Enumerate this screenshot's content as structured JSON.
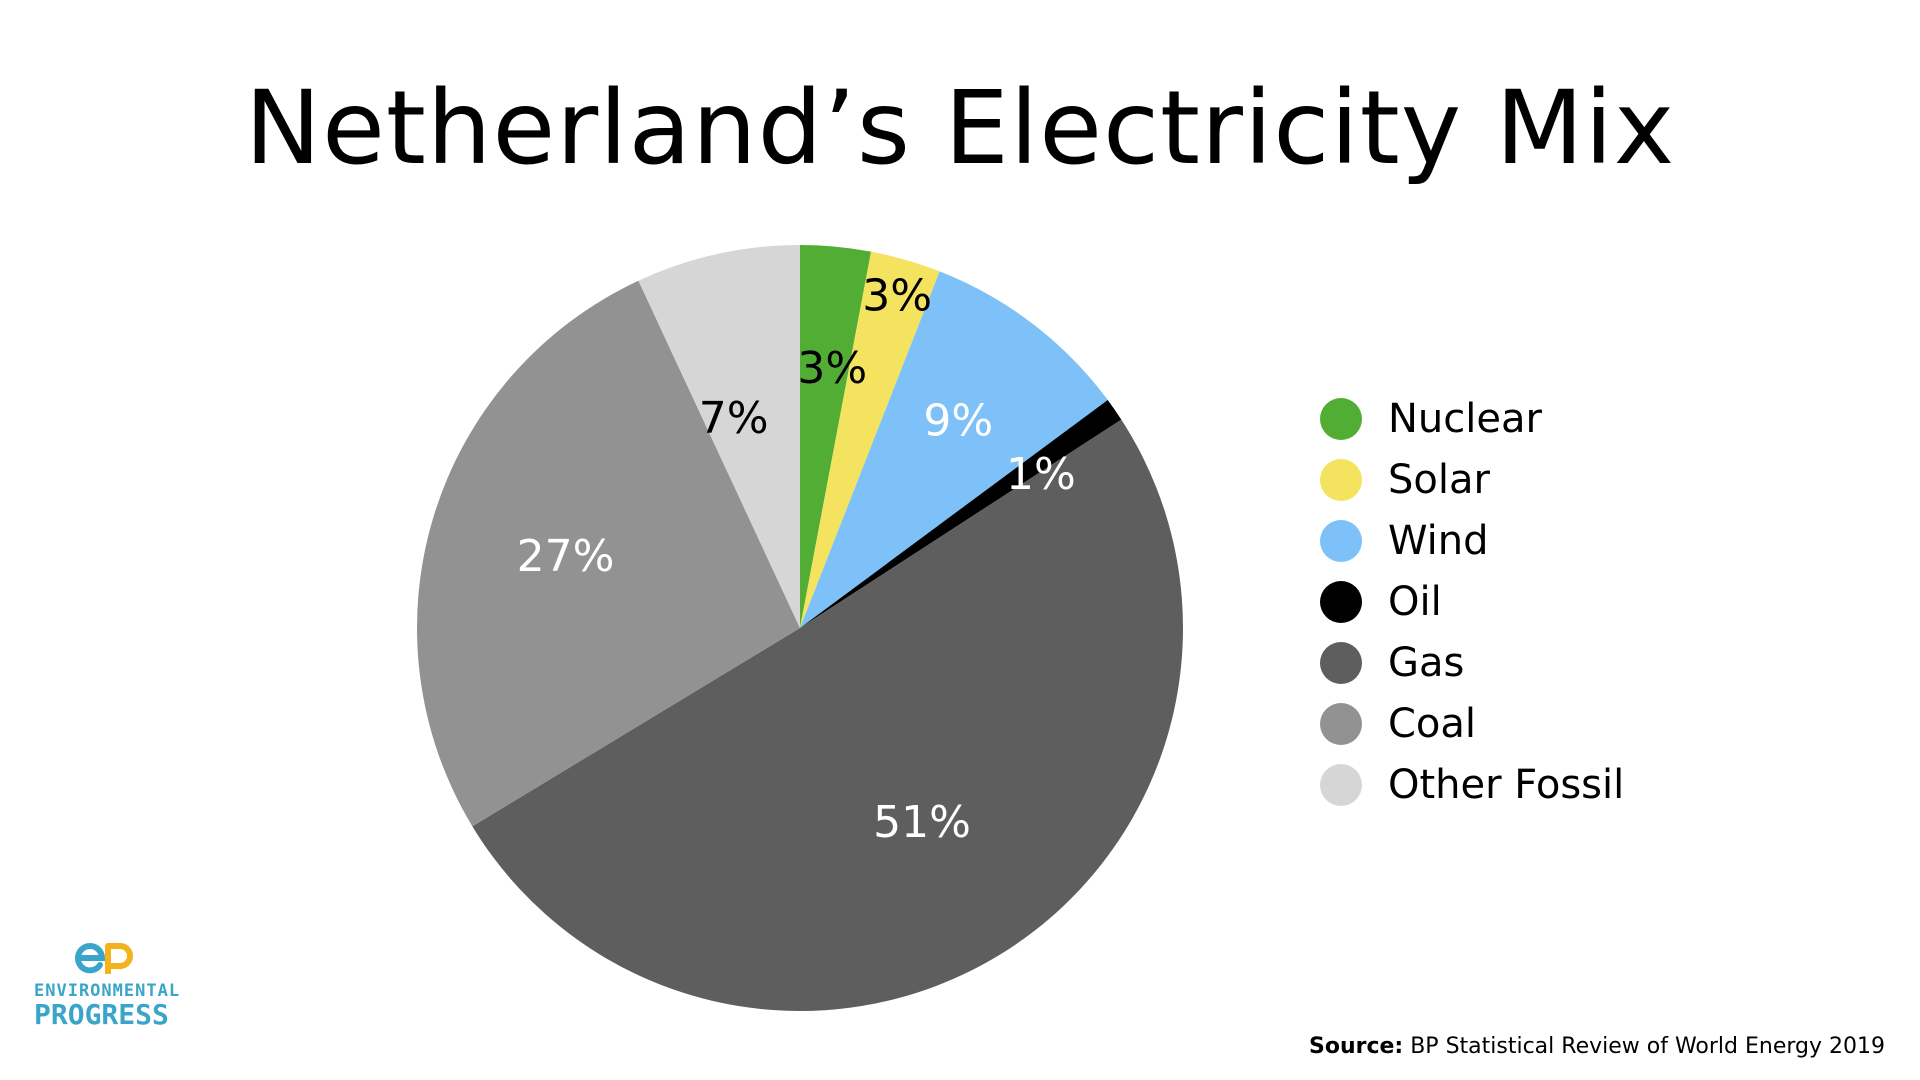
{
  "slide": {
    "title": "Netherland’s Electricity Mix"
  },
  "chart_data": {
    "type": "pie",
    "title": "Netherland’s Electricity Mix",
    "slices": [
      {
        "name": "Nuclear",
        "value": 3,
        "label": "3%",
        "color": "#52ad35",
        "label_color": "#000000"
      },
      {
        "name": "Solar",
        "value": 3,
        "label": "3%",
        "color": "#f4e35e",
        "label_color": "#000000"
      },
      {
        "name": "Wind",
        "value": 9,
        "label": "9%",
        "color": "#7ec0f8",
        "label_color": "#ffffff"
      },
      {
        "name": "Oil",
        "value": 1,
        "label": "1%",
        "color": "#000000",
        "label_color": "#ffffff"
      },
      {
        "name": "Gas",
        "value": 51,
        "label": "51%",
        "color": "#5e5e5e",
        "label_color": "#ffffff"
      },
      {
        "name": "Coal",
        "value": 27,
        "label": "27%",
        "color": "#929292",
        "label_color": "#ffffff"
      },
      {
        "name": "Other Fossil",
        "value": 7,
        "label": "7%",
        "color": "#d6d6d6",
        "label_color": "#000000"
      }
    ],
    "start_angle": "12 o'clock",
    "direction": "clockwise",
    "legend_position": "right"
  },
  "source": {
    "prefix": "Source:",
    "text": "BP Statistical Review of World Energy 2019"
  },
  "logo": {
    "line1": "ENVIRONMENTAL",
    "line2": "PROGRESS",
    "color": "#3aa5c9",
    "icon": "ep-logo-icon"
  }
}
